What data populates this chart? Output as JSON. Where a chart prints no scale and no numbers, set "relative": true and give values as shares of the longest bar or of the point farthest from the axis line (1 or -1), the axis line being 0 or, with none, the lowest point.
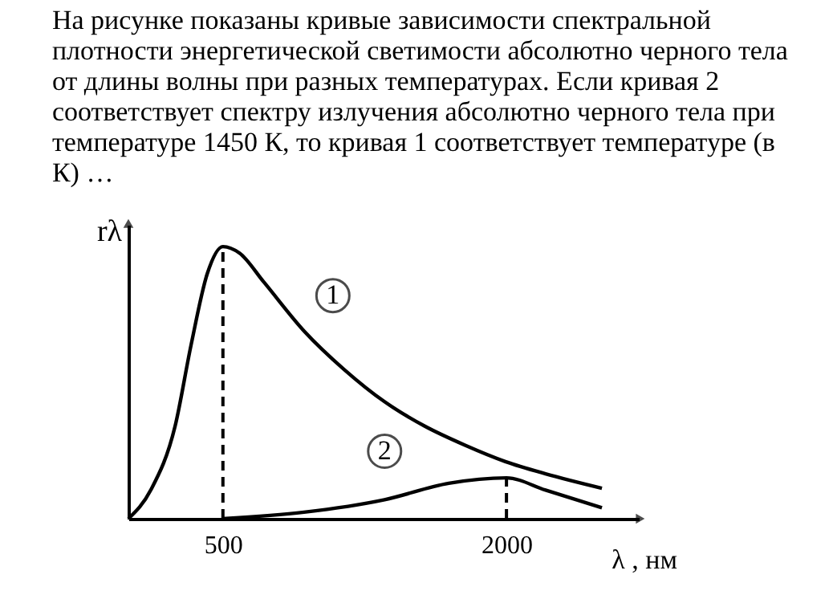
{
  "chart_data": {
    "type": "line",
    "title": "На рисунке показаны кривые зависимости спектральной плотности энергетической светимости абсолютно черного тела от длины волны при разных температурах. Если кривая 2 соответствует спектру излучения абсолютно черного тела при температуре 1450 К, то кривая 1 соответствует температуре (в К) …",
    "xlabel": "λ , нм",
    "ylabel": "rλ",
    "relative": true,
    "tick_labels": "x",
    "grid": false,
    "marker": "none",
    "line_style": "solid",
    "xlim": [
      0,
      2700
    ],
    "xticks": [
      500,
      2000
    ],
    "series": [
      {
        "name": "1",
        "color": "#000000",
        "x": [
          0,
          119,
          247,
          332,
          417,
          500,
          588,
          716,
          929,
          1142,
          1355,
          1568,
          1781,
          1994,
          2207,
          2505
        ],
        "values": [
          0,
          0.106,
          0.34,
          0.64,
          0.9,
          1.0,
          0.976,
          0.87,
          0.69,
          0.548,
          0.43,
          0.34,
          0.27,
          0.21,
          0.165,
          0.112
        ]
      },
      {
        "name": "2",
        "color": "#000000",
        "x": [
          500,
          929,
          1355,
          1695,
          2000,
          2207,
          2505
        ],
        "values": [
          0,
          0.024,
          0.07,
          0.13,
          0.15,
          0.105,
          0.04
        ]
      }
    ],
    "ref_lines": [
      {
        "axis": "x",
        "value": 500,
        "line_style": "dashed",
        "color": "#000000"
      },
      {
        "axis": "x",
        "value": 2000,
        "line_style": "dashed",
        "color": "#000000"
      }
    ]
  }
}
